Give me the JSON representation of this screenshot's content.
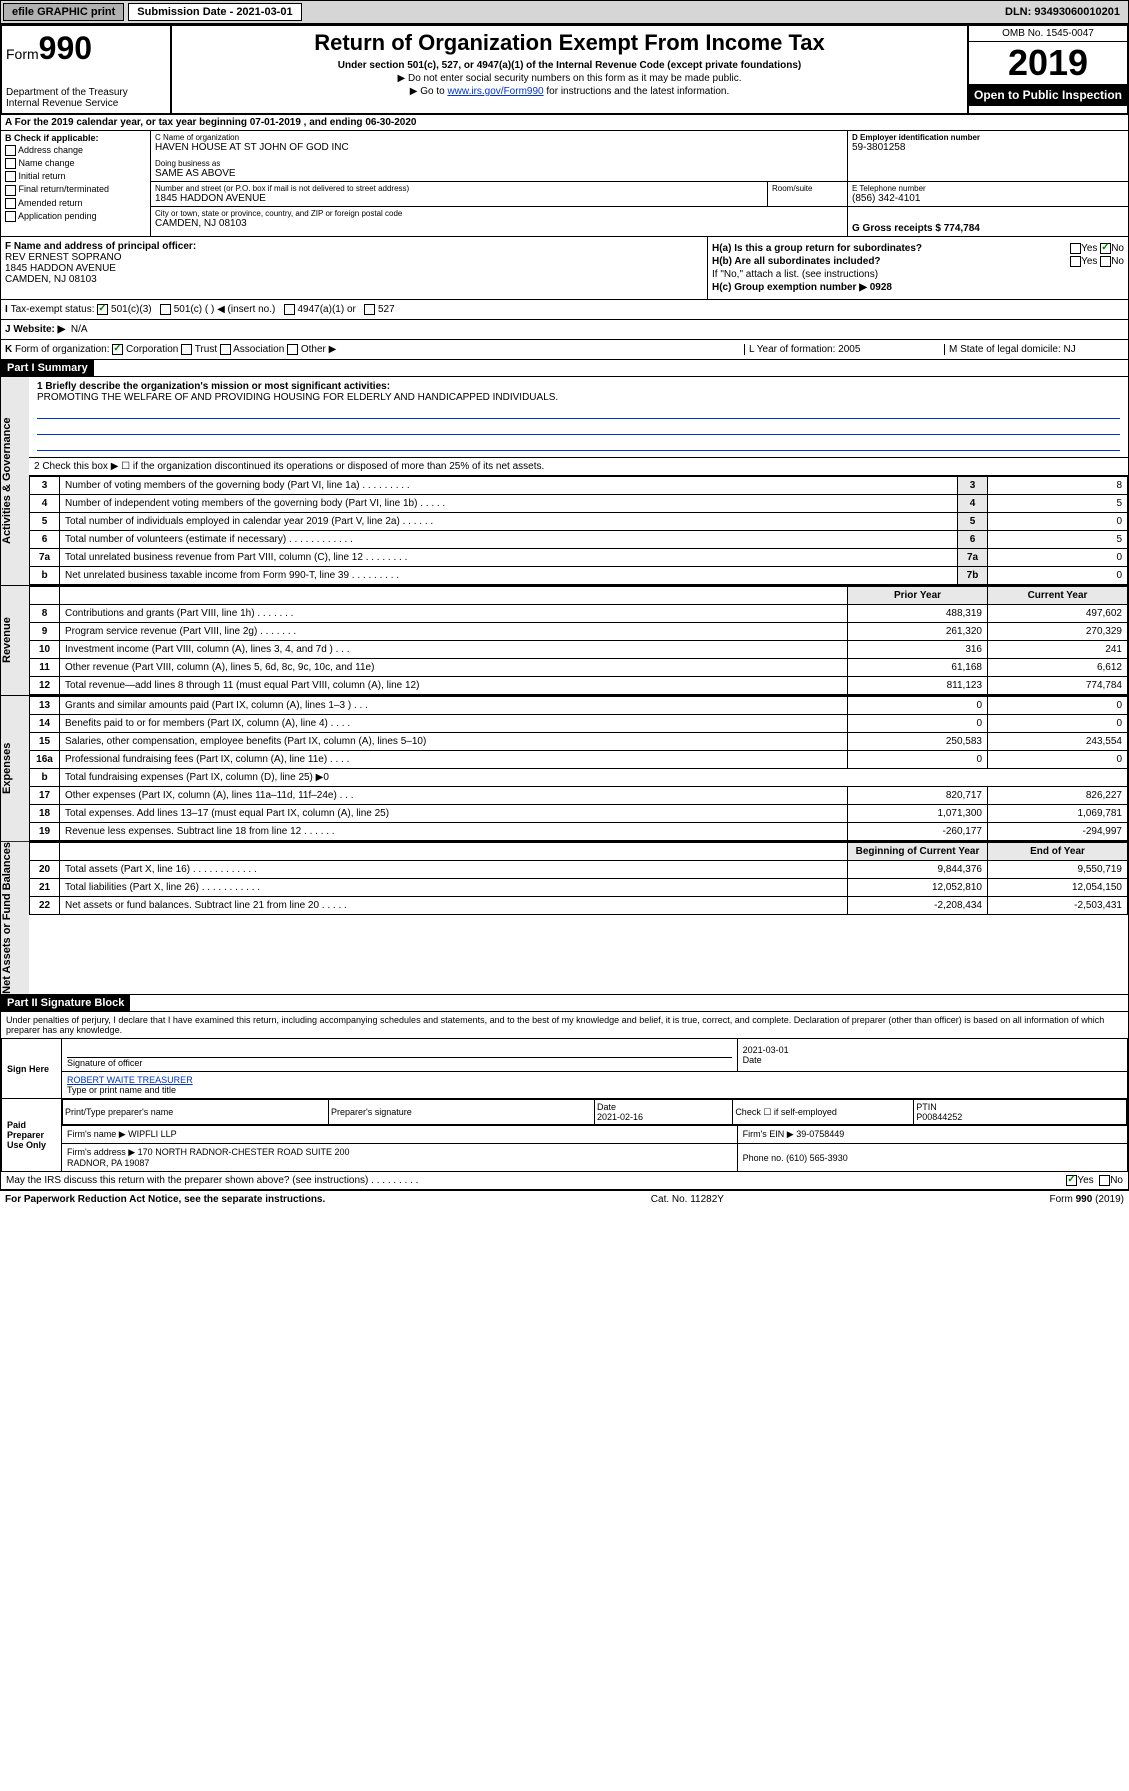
{
  "topbar": {
    "efile": "efile GRAPHIC print",
    "subdate_label": "Submission Date - 2021-03-01",
    "dln": "DLN: 93493060010201"
  },
  "header": {
    "form_label": "Form",
    "form_num": "990",
    "dept": "Department of the Treasury\nInternal Revenue Service",
    "title": "Return of Organization Exempt From Income Tax",
    "subtitle": "Under section 501(c), 527, or 4947(a)(1) of the Internal Revenue Code (except private foundations)",
    "note1": "▶ Do not enter social security numbers on this form as it may be made public.",
    "note2_pre": "▶ Go to ",
    "note2_link": "www.irs.gov/Form990",
    "note2_post": " for instructions and the latest information.",
    "omb": "OMB No. 1545-0047",
    "year": "2019",
    "otp": "Open to Public Inspection"
  },
  "section_a": "A For the 2019 calendar year, or tax year beginning 07-01-2019   , and ending 06-30-2020",
  "col_b": {
    "label": "B Check if applicable:",
    "items": [
      "Address change",
      "Name change",
      "Initial return",
      "Final return/terminated",
      "Amended return",
      "Application pending"
    ]
  },
  "col_c": {
    "name_lbl": "C Name of organization",
    "name": "HAVEN HOUSE AT ST JOHN OF GOD INC",
    "dba_lbl": "Doing business as",
    "dba": "SAME AS ABOVE",
    "addr_lbl": "Number and street (or P.O. box if mail is not delivered to street address)",
    "addr": "1845 HADDON AVENUE",
    "room_lbl": "Room/suite",
    "city_lbl": "City or town, state or province, country, and ZIP or foreign postal code",
    "city": "CAMDEN, NJ  08103"
  },
  "col_d": {
    "ein_lbl": "D Employer identification number",
    "ein": "59-3801258",
    "tel_lbl": "E Telephone number",
    "tel": "(856) 342-4101",
    "gross_lbl": "G Gross receipts $ 774,784"
  },
  "f_block": {
    "lbl": "F Name and address of principal officer:",
    "name": "REV ERNEST SOPRANO",
    "addr1": "1845 HADDON AVENUE",
    "addr2": "CAMDEN, NJ  08103"
  },
  "h_block": {
    "ha": "H(a)  Is this a group return for subordinates?",
    "hb": "H(b)  Are all subordinates included?",
    "hb_note": "If \"No,\" attach a list. (see instructions)",
    "hc": "H(c)  Group exemption number ▶  0928"
  },
  "status_row": {
    "lbl": "Tax-exempt status:",
    "opts": [
      "501(c)(3)",
      "501(c) (  ) ◀ (insert no.)",
      "4947(a)(1) or",
      "527"
    ]
  },
  "website": {
    "lbl": "J Website: ▶",
    "val": "N/A"
  },
  "k_row": "K Form of organization:   Corporation   Trust   Association   Other ▶",
  "l_row": {
    "lbl": "L Year of formation: 2005",
    "m": "M State of legal domicile: NJ"
  },
  "part1": {
    "title": "Part I     Summary",
    "line1_lbl": "1  Briefly describe the organization's mission or most significant activities:",
    "line1_val": "PROMOTING THE WELFARE OF AND PROVIDING HOUSING FOR ELDERLY AND HANDICAPPED INDIVIDUALS.",
    "line2": "2  Check this box ▶ ☐  if the organization discontinued its operations or disposed of more than 25% of its net assets.",
    "tabs": {
      "gov": "Activities & Governance",
      "rev": "Revenue",
      "exp": "Expenses",
      "net": "Net Assets or Fund Balances"
    },
    "rows_single": [
      {
        "n": "3",
        "d": "Number of voting members of the governing body (Part VI, line 1a)  .    .    .    .    .    .    .    .    .",
        "c": "3",
        "v": "8"
      },
      {
        "n": "4",
        "d": "Number of independent voting members of the governing body (Part VI, line 1b)  .    .    .    .    .",
        "c": "4",
        "v": "5"
      },
      {
        "n": "5",
        "d": "Total number of individuals employed in calendar year 2019 (Part V, line 2a)  .    .    .    .    .    .",
        "c": "5",
        "v": "0"
      },
      {
        "n": "6",
        "d": "Total number of volunteers (estimate if necessary)  .    .    .    .    .    .    .    .    .    .    .    .",
        "c": "6",
        "v": "5"
      },
      {
        "n": "7a",
        "d": "Total unrelated business revenue from Part VIII, column (C), line 12  .    .    .    .    .    .    .    .",
        "c": "7a",
        "v": "0"
      },
      {
        "n": "b",
        "d": "Net unrelated business taxable income from Form 990-T, line 39  .    .    .    .    .    .    .    .    .",
        "c": "7b",
        "v": "0"
      }
    ],
    "col_hdrs": {
      "prior": "Prior Year",
      "current": "Current Year"
    },
    "rows_rev": [
      {
        "n": "8",
        "d": "Contributions and grants (Part VIII, line 1h)  .    .    .    .    .    .    .",
        "p": "488,319",
        "c": "497,602"
      },
      {
        "n": "9",
        "d": "Program service revenue (Part VIII, line 2g)  .    .    .    .    .    .    .",
        "p": "261,320",
        "c": "270,329"
      },
      {
        "n": "10",
        "d": "Investment income (Part VIII, column (A), lines 3, 4, and 7d )  .    .    .",
        "p": "316",
        "c": "241"
      },
      {
        "n": "11",
        "d": "Other revenue (Part VIII, column (A), lines 5, 6d, 8c, 9c, 10c, and 11e)",
        "p": "61,168",
        "c": "6,612"
      },
      {
        "n": "12",
        "d": "Total revenue—add lines 8 through 11 (must equal Part VIII, column (A), line 12)",
        "p": "811,123",
        "c": "774,784"
      }
    ],
    "rows_exp": [
      {
        "n": "13",
        "d": "Grants and similar amounts paid (Part IX, column (A), lines 1–3 )  .    .    .",
        "p": "0",
        "c": "0"
      },
      {
        "n": "14",
        "d": "Benefits paid to or for members (Part IX, column (A), line 4)  .    .    .    .",
        "p": "0",
        "c": "0"
      },
      {
        "n": "15",
        "d": "Salaries, other compensation, employee benefits (Part IX, column (A), lines 5–10)",
        "p": "250,583",
        "c": "243,554"
      },
      {
        "n": "16a",
        "d": "Professional fundraising fees (Part IX, column (A), line 11e)  .    .    .    .",
        "p": "0",
        "c": "0"
      },
      {
        "n": "b",
        "d": "Total fundraising expenses (Part IX, column (D), line 25) ▶0",
        "p": "",
        "c": ""
      },
      {
        "n": "17",
        "d": "Other expenses (Part IX, column (A), lines 11a–11d, 11f–24e)  .    .    .",
        "p": "820,717",
        "c": "826,227"
      },
      {
        "n": "18",
        "d": "Total expenses. Add lines 13–17 (must equal Part IX, column (A), line 25)",
        "p": "1,071,300",
        "c": "1,069,781"
      },
      {
        "n": "19",
        "d": "Revenue less expenses. Subtract line 18 from line 12  .    .    .    .    .    .",
        "p": "-260,177",
        "c": "-294,997"
      }
    ],
    "net_hdrs": {
      "begin": "Beginning of Current Year",
      "end": "End of Year"
    },
    "rows_net": [
      {
        "n": "20",
        "d": "Total assets (Part X, line 16)  .    .    .    .    .    .    .    .    .    .    .    .",
        "p": "9,844,376",
        "c": "9,550,719"
      },
      {
        "n": "21",
        "d": "Total liabilities (Part X, line 26)  .    .    .    .    .    .    .    .    .    .    .",
        "p": "12,052,810",
        "c": "12,054,150"
      },
      {
        "n": "22",
        "d": "Net assets or fund balances. Subtract line 21 from line 20  .    .    .    .    .",
        "p": "-2,208,434",
        "c": "-2,503,431"
      }
    ]
  },
  "part2": {
    "title": "Part II     Signature Block",
    "perjury": "Under penalties of perjury, I declare that I have examined this return, including accompanying schedules and statements, and to the best of my knowledge and belief, it is true, correct, and complete. Declaration of preparer (other than officer) is based on all information of which preparer has any knowledge.",
    "sign_here": "Sign Here",
    "sig_officer": "Signature of officer",
    "sig_date": "2021-03-01",
    "date_lbl": "Date",
    "officer_name": "ROBERT WAITE  TREASURER",
    "type_name": "Type or print name and title",
    "paid": "Paid Preparer Use Only",
    "prep_name_lbl": "Print/Type preparer's name",
    "prep_sig_lbl": "Preparer's signature",
    "prep_date": "2021-02-16",
    "check_self": "Check ☐ if self-employed",
    "ptin_lbl": "PTIN",
    "ptin": "P00844252",
    "firm_name_lbl": "Firm's name    ▶",
    "firm_name": "WIPFLI LLP",
    "firm_ein_lbl": "Firm's EIN ▶",
    "firm_ein": "39-0758449",
    "firm_addr_lbl": "Firm's address ▶",
    "firm_addr": "170 NORTH RADNOR-CHESTER ROAD SUITE 200\nRADNOR, PA  19087",
    "phone_lbl": "Phone no.",
    "phone": "(610) 565-3930",
    "discuss": "May the IRS discuss this return with the preparer shown above? (see instructions)   .    .    .    .    .    .    .    .    .",
    "yes": "Yes",
    "no": "No"
  },
  "footer": {
    "left": "For Paperwork Reduction Act Notice, see the separate instructions.",
    "mid": "Cat. No. 11282Y",
    "right": "Form 990 (2019)"
  }
}
